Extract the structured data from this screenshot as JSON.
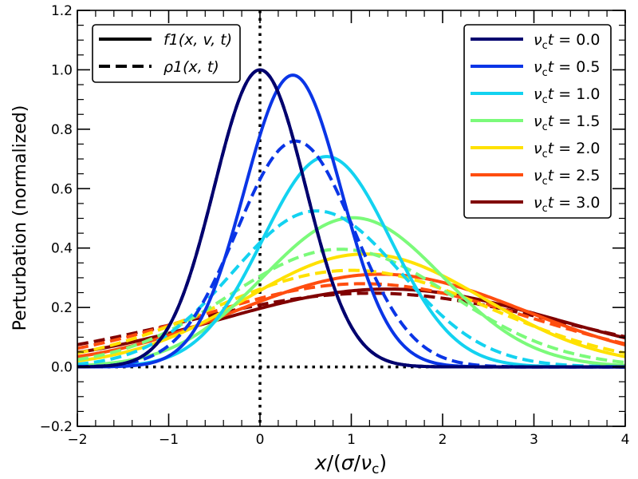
{
  "chart_data": {
    "type": "line",
    "title": "",
    "xlabel": "x/(σ/ν_c)",
    "ylabel": "Perturbation (normalized)",
    "xlim": [
      -2,
      4
    ],
    "ylim": [
      -0.2,
      1.2
    ],
    "xticks": [
      -2,
      -1,
      0,
      1,
      2,
      3,
      4
    ],
    "xtick_labels": [
      "−2",
      "−1",
      "0",
      "1",
      "2",
      "3",
      "4"
    ],
    "yticks": [
      -0.2,
      0.0,
      0.2,
      0.4,
      0.6,
      0.8,
      1.0,
      1.2
    ],
    "ytick_labels": [
      "−0.2",
      "0.0",
      "0.2",
      "0.4",
      "0.6",
      "0.8",
      "1.0",
      "1.2"
    ],
    "reference_lines": [
      {
        "orientation": "vertical",
        "value": 0,
        "style": "dotted"
      },
      {
        "orientation": "horizontal",
        "value": 0,
        "style": "dotted"
      }
    ],
    "style_legend": {
      "location": "top-left",
      "entries": [
        {
          "label": "f1(x, v, t)",
          "linestyle": "solid"
        },
        {
          "label": "ρ1(x, t)",
          "linestyle": "dashed"
        }
      ]
    },
    "color_legend": {
      "location": "top-right",
      "prefix": "ν",
      "prefix_sub": "c",
      "variable": "t",
      "entries": [
        {
          "value": "0.0",
          "color": "#00006e"
        },
        {
          "value": "0.5",
          "color": "#0a35e6"
        },
        {
          "value": "1.0",
          "color": "#13d2f0"
        },
        {
          "value": "1.5",
          "color": "#7bfa7a"
        },
        {
          "value": "2.0",
          "color": "#ffe100"
        },
        {
          "value": "2.5",
          "color": "#ff4d0f"
        },
        {
          "value": "3.0",
          "color": "#800000"
        }
      ]
    },
    "series": [
      {
        "name": "f1, νct=0.0",
        "t": 0.0,
        "kind": "f",
        "linestyle": "solid",
        "color": "#00006e",
        "peak": 1.0,
        "center": 0.0,
        "sigma": 0.5
      },
      {
        "name": "ρ1, νct=0.0",
        "t": 0.0,
        "kind": "rho",
        "linestyle": "dashed",
        "color": "#00006e",
        "peak": 1.0,
        "center": 0.0,
        "sigma": 0.5
      },
      {
        "name": "f1, νct=0.5",
        "t": 0.5,
        "kind": "f",
        "linestyle": "solid",
        "color": "#0a35e6",
        "peak": 0.982,
        "center": 0.36,
        "sigma": 0.53
      },
      {
        "name": "ρ1, νct=0.5",
        "t": 0.5,
        "kind": "rho",
        "linestyle": "dashed",
        "color": "#0a35e6",
        "peak": 0.76,
        "center": 0.39,
        "sigma": 0.64
      },
      {
        "name": "f1, νct=1.0",
        "t": 1.0,
        "kind": "f",
        "linestyle": "solid",
        "color": "#13d2f0",
        "peak": 0.708,
        "center": 0.73,
        "sigma": 0.7
      },
      {
        "name": "ρ1, νct=1.0",
        "t": 1.0,
        "kind": "rho",
        "linestyle": "dashed",
        "color": "#13d2f0",
        "peak": 0.525,
        "center": 0.62,
        "sigma": 0.92
      },
      {
        "name": "f1, νct=1.5",
        "t": 1.5,
        "kind": "f",
        "linestyle": "solid",
        "color": "#7bfa7a",
        "peak": 0.502,
        "center": 1.02,
        "sigma": 0.98
      },
      {
        "name": "ρ1, νct=1.5",
        "t": 1.5,
        "kind": "rho",
        "linestyle": "dashed",
        "color": "#7bfa7a",
        "peak": 0.396,
        "center": 0.88,
        "sigma": 1.22
      },
      {
        "name": "f1, νct=2.0",
        "t": 2.0,
        "kind": "f",
        "linestyle": "solid",
        "color": "#ffe100",
        "peak": 0.38,
        "center": 1.15,
        "sigma": 1.3
      },
      {
        "name": "ρ1, νct=2.0",
        "t": 2.0,
        "kind": "rho",
        "linestyle": "dashed",
        "color": "#ffe100",
        "peak": 0.325,
        "center": 1.0,
        "sigma": 1.52
      },
      {
        "name": "f1, νct=2.5",
        "t": 2.5,
        "kind": "f",
        "linestyle": "solid",
        "color": "#ff4d0f",
        "peak": 0.312,
        "center": 1.32,
        "sigma": 1.58
      },
      {
        "name": "ρ1, νct=2.5",
        "t": 2.5,
        "kind": "rho",
        "linestyle": "dashed",
        "color": "#ff4d0f",
        "peak": 0.28,
        "center": 1.12,
        "sigma": 1.8
      },
      {
        "name": "f1, νct=3.0",
        "t": 3.0,
        "kind": "f",
        "linestyle": "solid",
        "color": "#800000",
        "peak": 0.262,
        "center": 1.4,
        "sigma": 1.85
      },
      {
        "name": "ρ1, νct=3.0",
        "t": 3.0,
        "kind": "rho",
        "linestyle": "dashed",
        "color": "#800000",
        "peak": 0.248,
        "center": 1.22,
        "sigma": 2.08
      }
    ]
  }
}
